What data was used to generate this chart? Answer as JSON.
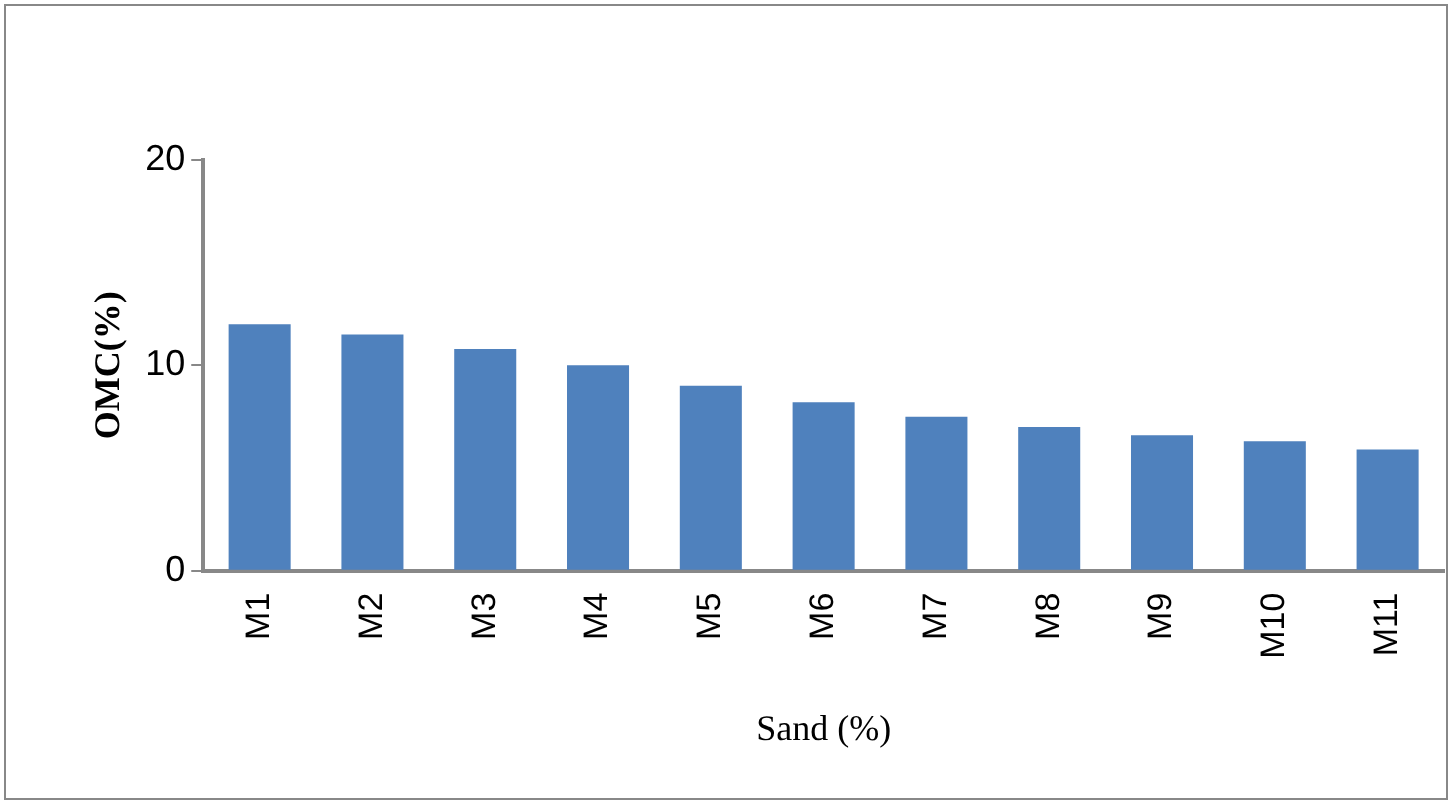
{
  "chart_data": {
    "type": "bar",
    "xlabel": "Sand (%)",
    "ylabel": "OMC(%)",
    "categories": [
      "M1",
      "M2",
      "M3",
      "M4",
      "M5",
      "M6",
      "M7",
      "M8",
      "M9",
      "M10",
      "M11"
    ],
    "values": [
      12.0,
      11.5,
      10.8,
      10.0,
      9.0,
      8.2,
      7.5,
      7.0,
      6.6,
      6.3,
      5.9
    ],
    "color": "#4f81bd",
    "ylim": [
      0,
      20
    ],
    "yticks": [
      0,
      10,
      20
    ],
    "grid": false,
    "legend": false
  }
}
